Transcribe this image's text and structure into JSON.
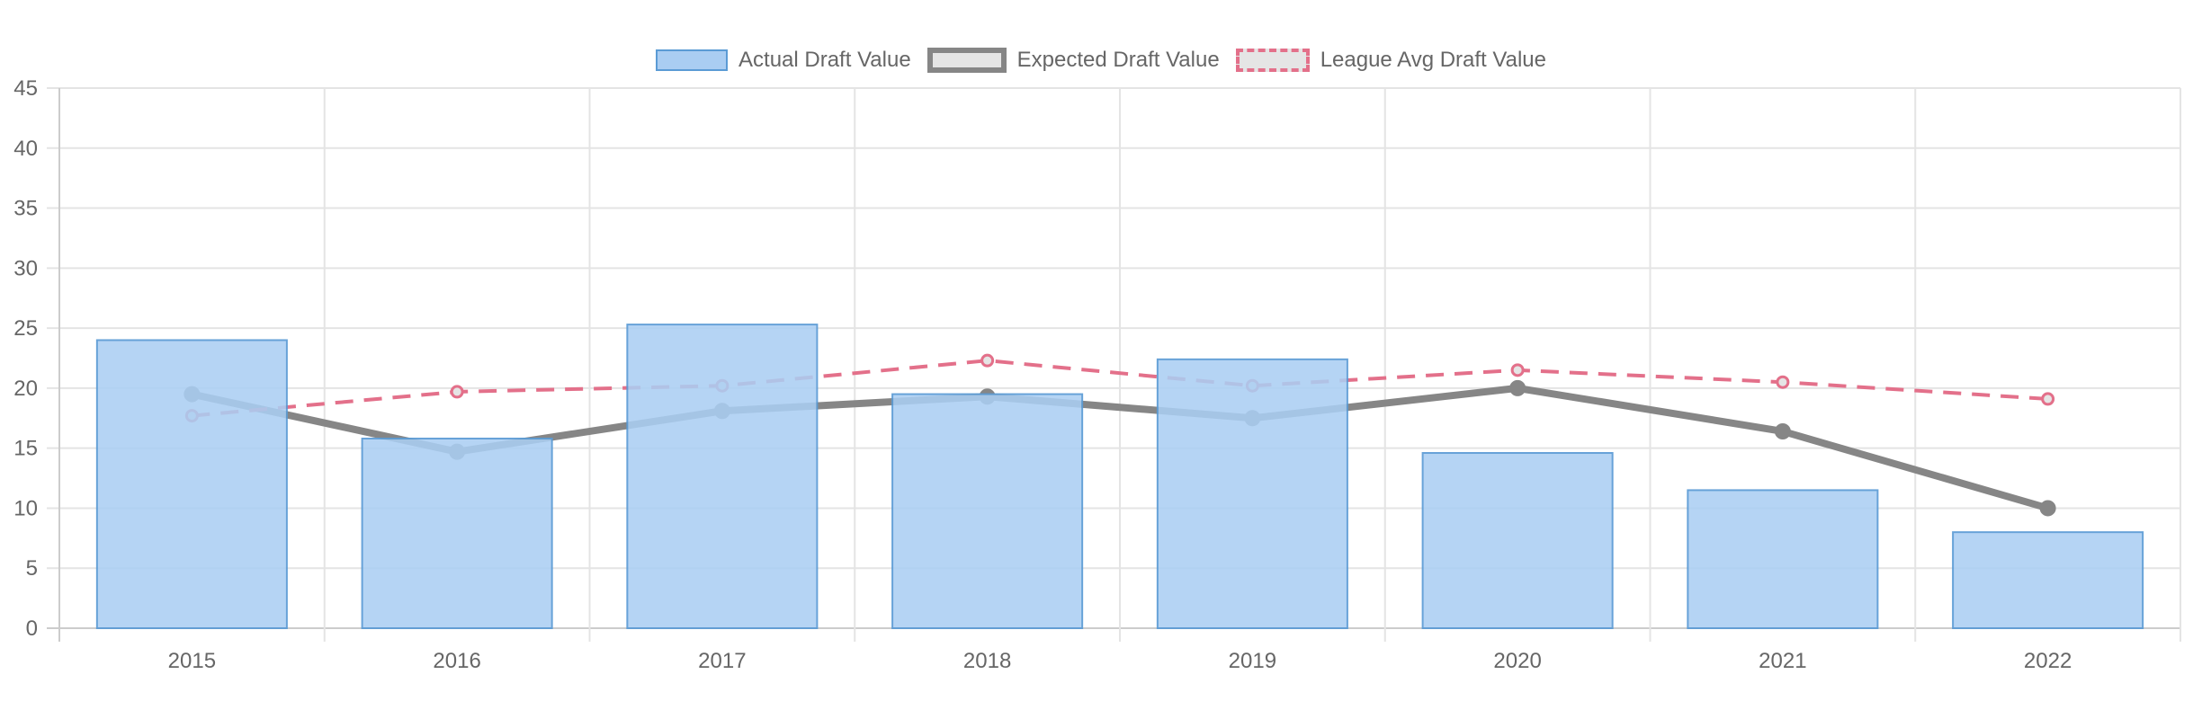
{
  "chart_data": {
    "type": "bar",
    "title": "",
    "xlabel": "",
    "ylabel": "",
    "categories": [
      "2015",
      "2016",
      "2017",
      "2018",
      "2019",
      "2020",
      "2021",
      "2022"
    ],
    "ylim": [
      0,
      45
    ],
    "yticks": [
      "0",
      "5",
      "10",
      "15",
      "20",
      "25",
      "30",
      "35",
      "40",
      "45"
    ],
    "grid": true,
    "legend_position": "top",
    "series": [
      {
        "name": "Actual Draft Value",
        "kind": "bar",
        "color": "#5b9bd5",
        "fill": "#aacdf2",
        "values": [
          24,
          15.8,
          25.3,
          19.5,
          22.4,
          14.6,
          11.5,
          8
        ]
      },
      {
        "name": "Expected Draft Value",
        "kind": "line",
        "color": "#868686",
        "fill": "#e5e5e5",
        "style": "solid",
        "values": [
          19.5,
          14.7,
          18.1,
          19.3,
          17.5,
          20,
          16.4,
          10
        ]
      },
      {
        "name": "League Avg Draft Value",
        "kind": "line",
        "color": "#e3708a",
        "fill": "#e5e5e5",
        "style": "dashed",
        "values": [
          17.7,
          19.7,
          20.2,
          22.3,
          20.2,
          21.5,
          20.5,
          19.1
        ]
      }
    ]
  }
}
